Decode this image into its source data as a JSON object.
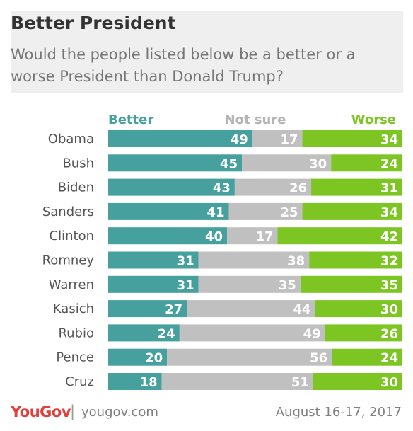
{
  "header": {
    "title": "Better President",
    "subtitle": "Would the people listed below be a better or a worse President than Donald Trump?"
  },
  "chart_data": {
    "type": "bar",
    "stacked": true,
    "orientation": "horizontal",
    "categories": [
      "Obama",
      "Bush",
      "Biden",
      "Sanders",
      "Clinton",
      "Romney",
      "Warren",
      "Kasich",
      "Rubio",
      "Pence",
      "Cruz"
    ],
    "series": [
      {
        "name": "Better",
        "color": "#46a09e",
        "values": [
          49,
          45,
          43,
          41,
          40,
          31,
          31,
          27,
          24,
          20,
          18
        ]
      },
      {
        "name": "Not sure",
        "color": "#c0c0c0",
        "values": [
          17,
          30,
          26,
          25,
          17,
          38,
          35,
          44,
          49,
          56,
          51
        ]
      },
      {
        "name": "Worse",
        "color": "#7cc522",
        "values": [
          34,
          24,
          31,
          34,
          42,
          32,
          35,
          30,
          26,
          24,
          30
        ]
      }
    ],
    "legend_placement": "top",
    "grid": false
  },
  "footer": {
    "logo": "YouGov",
    "separator": "|",
    "site": "yougov.com",
    "date": "August 16-17, 2017"
  }
}
